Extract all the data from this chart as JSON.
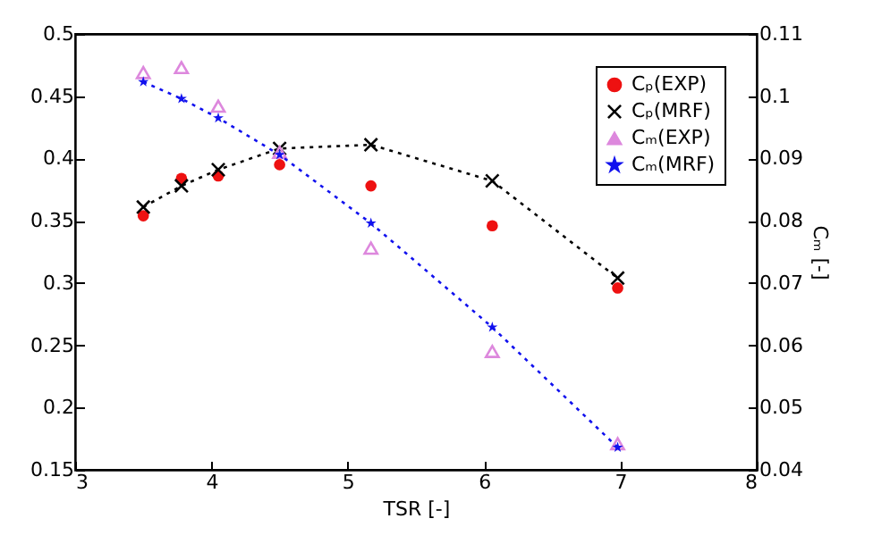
{
  "chart_data": {
    "type": "scatter",
    "xlabel": "TSR [-]",
    "y2label": "Cₘ [-]",
    "xlim": [
      3,
      8
    ],
    "xticks": [
      3,
      4,
      5,
      6,
      7,
      8
    ],
    "ylim": [
      0.15,
      0.5
    ],
    "yticks": [
      0.15,
      0.2,
      0.25,
      0.3,
      0.35,
      0.4,
      0.45,
      0.5
    ],
    "y2lim": [
      0.04,
      0.11
    ],
    "y2ticks": [
      0.04,
      0.05,
      0.06,
      0.07,
      0.08,
      0.09,
      0.1,
      0.11
    ],
    "grid": false,
    "legend": "top right",
    "x": [
      3.5,
      3.78,
      4.05,
      4.5,
      5.17,
      6.06,
      6.98
    ],
    "series": [
      {
        "name": "Cₚ(EXP)",
        "marker": "circle",
        "color": "#ee1111",
        "values": [
          0.354,
          0.384,
          0.386,
          0.395,
          0.378,
          0.346,
          0.296
        ]
      },
      {
        "name": "Cₚ(MRF)",
        "type": "line",
        "marker": "cross",
        "line_style": "dotted",
        "color": "#000000",
        "values": [
          0.361,
          0.378,
          0.391,
          0.408,
          0.411,
          0.382,
          0.304
        ]
      },
      {
        "name": "Cₘ(EXP)",
        "marker": "triangle",
        "axis": "y2",
        "color": "#dd88dd",
        "values": [
          0.1038,
          0.1046,
          0.0984,
          0.091,
          0.0756,
          0.059,
          0.0442
        ]
      },
      {
        "name": "Cₘ(MRF)",
        "type": "line",
        "marker": "star",
        "line_style": "dotted",
        "axis": "y2",
        "color": "#1111ee",
        "values": [
          0.1023,
          0.0996,
          0.0965,
          0.0906,
          0.0796,
          0.0629,
          0.0436
        ]
      }
    ]
  }
}
